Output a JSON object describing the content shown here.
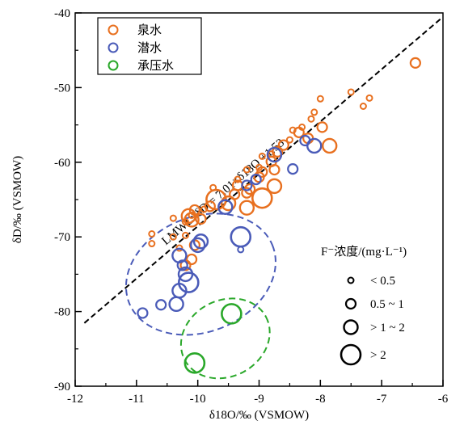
{
  "chart_data": {
    "type": "scatter",
    "xlabel": "δ18O/‰ (VSMOW)",
    "ylabel": "δD/‰ (VSMOW)",
    "xlim": [
      -12,
      -6
    ],
    "ylim": [
      -90,
      -40
    ],
    "x_ticks": [
      "-12",
      "-11",
      "-10",
      "-9",
      "-8",
      "-7",
      "-6"
    ],
    "y_ticks": [
      "-40",
      "-50",
      "-60",
      "-70",
      "-80",
      "-90"
    ],
    "grid": false,
    "legend": {
      "placement": "top-left",
      "entries": [
        {
          "label": "泉水",
          "color": "#E8701F"
        },
        {
          "label": "潜水",
          "color": "#4A5BB8"
        },
        {
          "label": "承压水",
          "color": "#2AA82A"
        }
      ]
    },
    "size_legend": {
      "title": "F⁻浓度/(mg·L⁻¹)",
      "placement": "bottom-right",
      "entries": [
        {
          "label": "< 0.5",
          "size": 1
        },
        {
          "label": "0.5 ~ 1",
          "size": 2
        },
        {
          "label": "> 1 ~ 2",
          "size": 3
        },
        {
          "label": "> 2",
          "size": 4
        }
      ]
    },
    "lmwl": {
      "label": "LMWL: δD = 7.01×δ18O +1.53",
      "slope": 7.01,
      "intercept": 1.53,
      "x_range": [
        -11.85,
        -6.03
      ],
      "color": "#000000"
    },
    "ellipses": [
      {
        "series": "潜水",
        "center": [
          -9.95,
          -75
        ],
        "x_radius": 1.26,
        "y_radius": 7.7,
        "angle_deg": -22,
        "color": "#4A5BB8"
      },
      {
        "series": "承压水",
        "center": [
          -9.55,
          -83.6
        ],
        "x_radius": 0.75,
        "y_radius": 5.1,
        "angle_deg": -28,
        "color": "#2AA82A"
      }
    ],
    "series": [
      {
        "name": "泉水",
        "color": "#E8701F",
        "points": [
          [
            -6.45,
            -46.7,
            2
          ],
          [
            -7.5,
            -50.6,
            1
          ],
          [
            -7.2,
            -51.4,
            1
          ],
          [
            -7.3,
            -52.5,
            1
          ],
          [
            -8.0,
            -51.5,
            1
          ],
          [
            -8.1,
            -53.3,
            1
          ],
          [
            -8.15,
            -54.2,
            1
          ],
          [
            -8.3,
            -55.3,
            1
          ],
          [
            -8.35,
            -56.0,
            2
          ],
          [
            -8.45,
            -55.7,
            1
          ],
          [
            -8.5,
            -57.0,
            1
          ],
          [
            -7.97,
            -55.3,
            2
          ],
          [
            -8.2,
            -56.8,
            2
          ],
          [
            -8.6,
            -57.7,
            2
          ],
          [
            -8.7,
            -58.6,
            2
          ],
          [
            -8.8,
            -58.9,
            1
          ],
          [
            -7.85,
            -57.8,
            3
          ],
          [
            -8.75,
            -61.0,
            2
          ],
          [
            -8.8,
            -59.9,
            2
          ],
          [
            -8.75,
            -63.2,
            3
          ],
          [
            -8.95,
            -61.3,
            2
          ],
          [
            -9.0,
            -62.0,
            2
          ],
          [
            -8.95,
            -59.2,
            1
          ],
          [
            -9.0,
            -60.7,
            1
          ],
          [
            -9.15,
            -63.6,
            2
          ],
          [
            -9.2,
            -64.1,
            2
          ],
          [
            -8.95,
            -64.8,
            4
          ],
          [
            -9.2,
            -61.0,
            1
          ],
          [
            -9.35,
            -62.3,
            1
          ],
          [
            -9.5,
            -65.5,
            3
          ],
          [
            -9.35,
            -63.1,
            2
          ],
          [
            -9.7,
            -65.0,
            4
          ],
          [
            -9.75,
            -63.4,
            1
          ],
          [
            -9.4,
            -64.3,
            2
          ],
          [
            -9.2,
            -66.1,
            3
          ],
          [
            -9.8,
            -65.9,
            2
          ],
          [
            -9.9,
            -66.3,
            1
          ],
          [
            -9.95,
            -67.6,
            2
          ],
          [
            -10.05,
            -66.4,
            2
          ],
          [
            -10.15,
            -67.2,
            3
          ],
          [
            -10.2,
            -68.0,
            1
          ],
          [
            -10.4,
            -67.5,
            1
          ],
          [
            -10.1,
            -67.7,
            3
          ],
          [
            -10.75,
            -69.6,
            1
          ],
          [
            -10.75,
            -70.9,
            1
          ],
          [
            -10.4,
            -70.0,
            1
          ],
          [
            -10.2,
            -69.8,
            1
          ],
          [
            -10.1,
            -73.0,
            2
          ],
          [
            -10.2,
            -73.8,
            2
          ],
          [
            -10.3,
            -71.5,
            1
          ],
          [
            -10.05,
            -71.1,
            2
          ],
          [
            -10.1,
            -67.1,
            1
          ]
        ]
      },
      {
        "name": "潜水",
        "color": "#4A5BB8",
        "points": [
          [
            -8.25,
            -57.1,
            2
          ],
          [
            -8.1,
            -57.8,
            3
          ],
          [
            -8.45,
            -60.9,
            2
          ],
          [
            -8.75,
            -59.0,
            3
          ],
          [
            -9.05,
            -62.3,
            2
          ],
          [
            -9.2,
            -63.1,
            2
          ],
          [
            -9.55,
            -66.0,
            3
          ],
          [
            -9.3,
            -70.0,
            4
          ],
          [
            -9.3,
            -71.7,
            1
          ],
          [
            -9.95,
            -70.6,
            3
          ],
          [
            -10.0,
            -71.1,
            3
          ],
          [
            -10.3,
            -72.5,
            3
          ],
          [
            -10.2,
            -75.0,
            3
          ],
          [
            -10.15,
            -76.1,
            4
          ],
          [
            -10.3,
            -77.2,
            3
          ],
          [
            -10.35,
            -79.0,
            3
          ],
          [
            -10.6,
            -79.1,
            2
          ],
          [
            -10.9,
            -80.2,
            2
          ],
          [
            -10.25,
            -73.8,
            2
          ]
        ]
      },
      {
        "name": "承压水",
        "color": "#2AA82A",
        "points": [
          [
            -9.45,
            -80.3,
            4
          ],
          [
            -10.05,
            -86.9,
            4
          ]
        ]
      }
    ]
  }
}
